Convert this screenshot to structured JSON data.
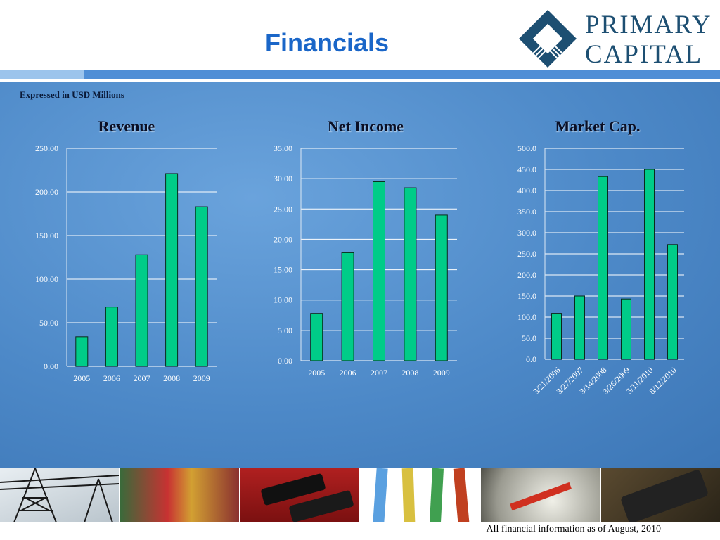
{
  "header": {
    "title": "Financials",
    "logo_line1": "PRIMARY",
    "logo_line2": "CAPITAL"
  },
  "subtitle": "Expressed in USD Millions",
  "footer": "All financial information as of August, 2010",
  "colors": {
    "bar_fill": "#00cc88",
    "background": "#4d89c8",
    "title": "#1a66c8",
    "logo": "#1d4f72"
  },
  "photos": [
    "power-line-tower-photo",
    "cable-bundle-photo",
    "connector-photo",
    "wires-photo",
    "gauge-photo",
    "control-panel-photo"
  ],
  "chart_data": [
    {
      "type": "bar",
      "title": "Revenue",
      "categories": [
        "2005",
        "2006",
        "2007",
        "2008",
        "2009"
      ],
      "values": [
        34,
        68,
        128,
        221,
        183
      ],
      "ylim": [
        0,
        250
      ],
      "yticks": [
        "0.00",
        "50.00",
        "100.00",
        "150.00",
        "200.00",
        "250.00"
      ],
      "grid": true
    },
    {
      "type": "bar",
      "title": "Net Income",
      "categories": [
        "2005",
        "2006",
        "2007",
        "2008",
        "2009"
      ],
      "values": [
        7.8,
        17.8,
        29.5,
        28.5,
        24.0
      ],
      "ylim": [
        0,
        35
      ],
      "yticks": [
        "0.00",
        "5.00",
        "10.00",
        "15.00",
        "20.00",
        "25.00",
        "30.00",
        "35.00"
      ],
      "grid": true
    },
    {
      "type": "bar",
      "title": "Market Cap.",
      "categories": [
        "3/21/2006",
        "3/27/2007",
        "3/14/2008",
        "3/26/2009",
        "3/11/2010",
        "8/12/2010"
      ],
      "values": [
        109,
        150,
        433,
        143,
        450,
        272
      ],
      "ylim": [
        0,
        500
      ],
      "yticks": [
        "0.0",
        "50.0",
        "100.0",
        "150.0",
        "200.0",
        "250.0",
        "300.0",
        "350.0",
        "400.0",
        "450.0",
        "500.0"
      ],
      "grid": true
    }
  ]
}
